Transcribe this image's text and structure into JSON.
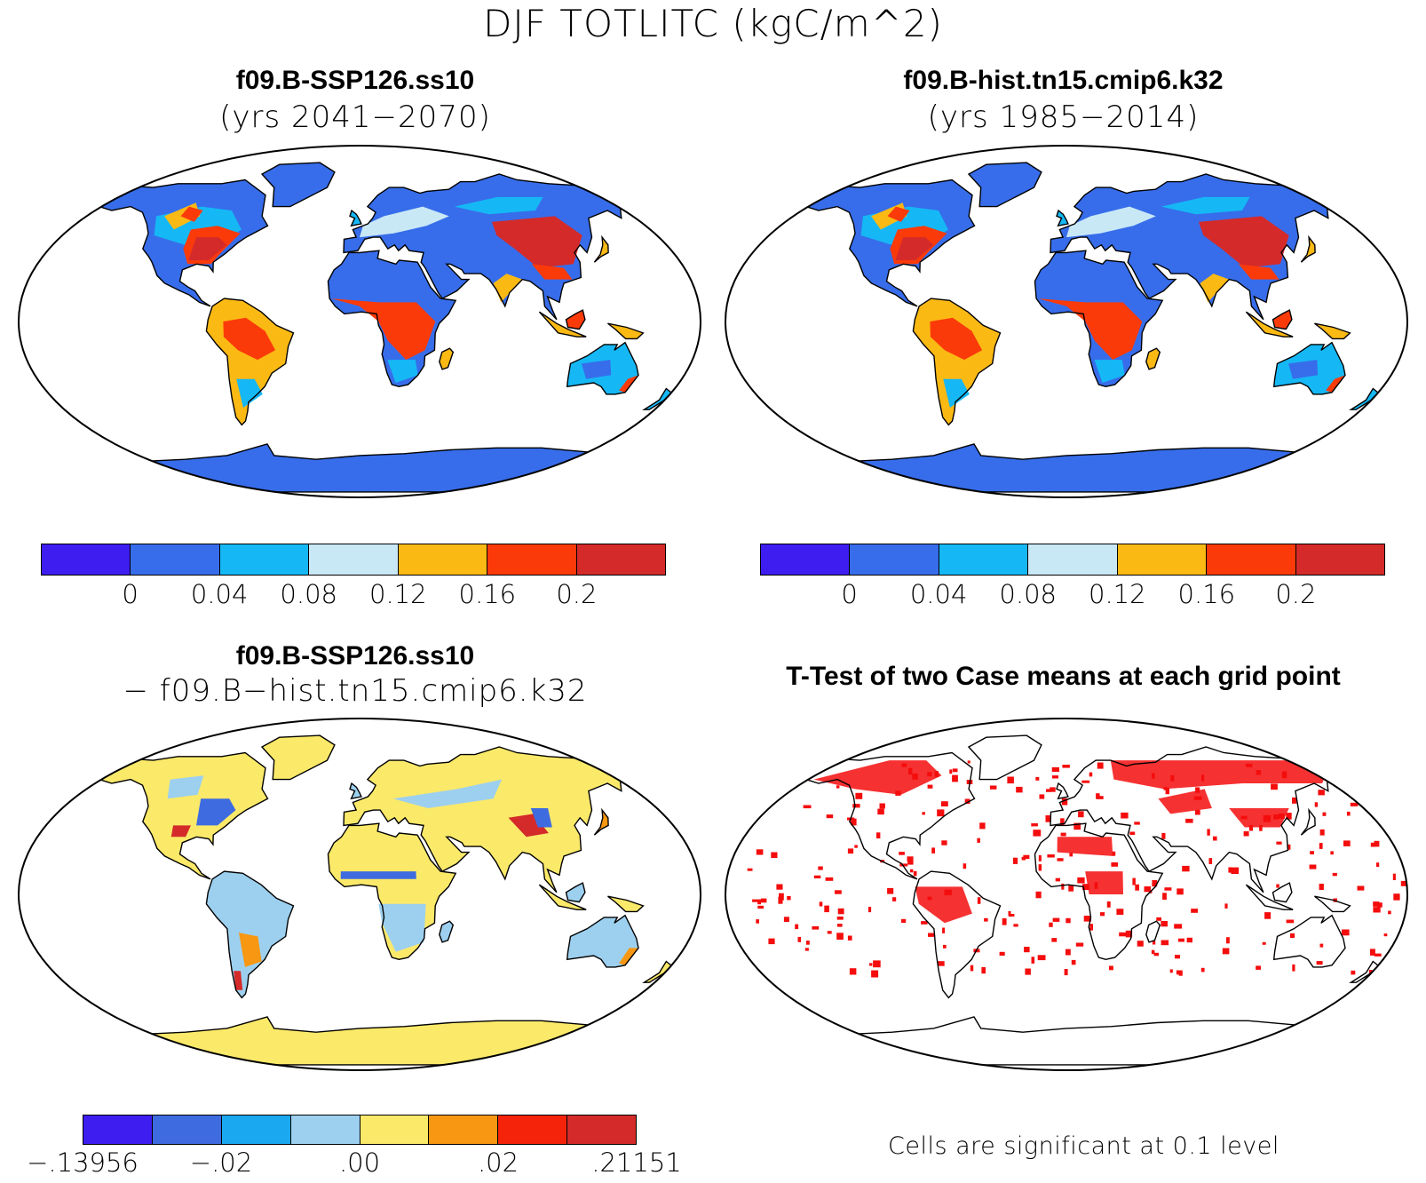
{
  "title": "DJF TOTLITC (kgC/m^2)",
  "panels": {
    "top_left": {
      "title": "f09.B-SSP126.ss10",
      "subtitle": "(yrs 2041−2070)"
    },
    "top_right": {
      "title": "f09.B-hist.tn15.cmip6.k32",
      "subtitle": "(yrs 1985−2014)"
    },
    "bottom_left": {
      "title": "f09.B-SSP126.ss10",
      "subtitle": "− f09.B−hist.tn15.cmip6.k32"
    },
    "bottom_right": {
      "title": "T-Test of two Case means at each grid point",
      "note": "Cells are significant at 0.1 level"
    }
  },
  "colorbars": {
    "main": {
      "colors": [
        "#3d1df0",
        "#376dea",
        "#15b8f5",
        "#c9e8f6",
        "#fbb914",
        "#fb3a0a",
        "#d42a2a"
      ],
      "labels": [
        "0",
        "0.04",
        "0.08",
        "0.12",
        "0.16",
        "0.2"
      ]
    },
    "diff": {
      "colors": [
        "#3d1df0",
        "#3e6be0",
        "#1aa8f0",
        "#9dd0ef",
        "#fbe96a",
        "#f79712",
        "#f5230a",
        "#d42a2a"
      ],
      "labels": [
        "−.13956",
        "−.02",
        ".00",
        ".02",
        ".21151"
      ]
    }
  },
  "map_colors": {
    "ocean": "#ffffff",
    "coast": "#000000",
    "ttest_significant": "#f40d0d"
  }
}
